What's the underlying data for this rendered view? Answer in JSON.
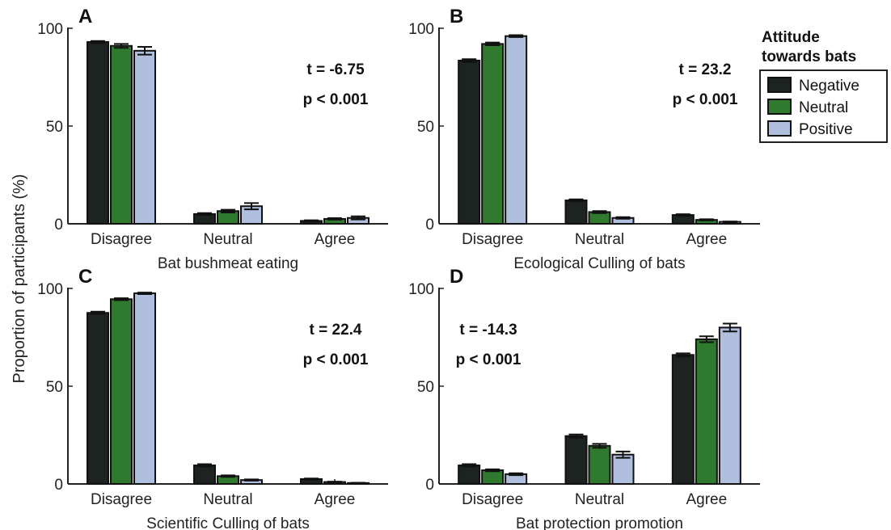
{
  "y_axis_label": "Proportion of participants (%)",
  "legend": {
    "title_line1": "Attitude",
    "title_line2": "towards bats",
    "items": [
      {
        "label": "Negative",
        "color": "#1c2321"
      },
      {
        "label": "Neutral",
        "color": "#2f7a2f"
      },
      {
        "label": "Positive",
        "color": "#b1bfdf"
      }
    ]
  },
  "chart_data": [
    {
      "type": "bar",
      "panel": "A",
      "xlabel": "Bat bushmeat eating",
      "categories": [
        "Disagree",
        "Neutral",
        "Agree"
      ],
      "yticks": [
        "0",
        "50",
        "100"
      ],
      "ylim": [
        0,
        100
      ],
      "stat_t": "t = -6.75",
      "stat_p": "p < 0.001",
      "series": [
        {
          "name": "Negative",
          "values": [
            93.0,
            5.0,
            1.5
          ],
          "errors": [
            0.5,
            0.5,
            0.3
          ]
        },
        {
          "name": "Neutral",
          "values": [
            91.0,
            6.5,
            2.5
          ],
          "errors": [
            1.0,
            0.7,
            0.4
          ]
        },
        {
          "name": "Positive",
          "values": [
            88.5,
            9.0,
            3.0
          ],
          "errors": [
            2.0,
            1.6,
            0.8
          ]
        }
      ]
    },
    {
      "type": "bar",
      "panel": "B",
      "xlabel": "Ecological Culling of bats",
      "categories": [
        "Disagree",
        "Neutral",
        "Agree"
      ],
      "yticks": [
        "0",
        "50",
        "100"
      ],
      "ylim": [
        0,
        100
      ],
      "stat_t": "t = 23.2",
      "stat_p": "p < 0.001",
      "series": [
        {
          "name": "Negative",
          "values": [
            83.5,
            12.0,
            4.5
          ],
          "errors": [
            0.7,
            0.5,
            0.4
          ]
        },
        {
          "name": "Neutral",
          "values": [
            92.0,
            6.0,
            2.0
          ],
          "errors": [
            0.7,
            0.5,
            0.3
          ]
        },
        {
          "name": "Positive",
          "values": [
            96.0,
            3.0,
            1.0
          ],
          "errors": [
            0.5,
            0.4,
            0.2
          ]
        }
      ]
    },
    {
      "type": "bar",
      "panel": "C",
      "xlabel": "Scientific Culling of bats",
      "categories": [
        "Disagree",
        "Neutral",
        "Agree"
      ],
      "yticks": [
        "0",
        "50",
        "100"
      ],
      "ylim": [
        0,
        100
      ],
      "stat_t": "t = 22.4",
      "stat_p": "p < 0.001",
      "series": [
        {
          "name": "Negative",
          "values": [
            87.5,
            9.5,
            2.5
          ],
          "errors": [
            0.6,
            0.6,
            0.3
          ]
        },
        {
          "name": "Neutral",
          "values": [
            94.5,
            4.0,
            1.0
          ],
          "errors": [
            0.5,
            0.4,
            0.2
          ]
        },
        {
          "name": "Positive",
          "values": [
            97.5,
            2.0,
            0.5
          ],
          "errors": [
            0.4,
            0.3,
            0.1
          ]
        }
      ]
    },
    {
      "type": "bar",
      "panel": "D",
      "xlabel": "Bat protection promotion",
      "categories": [
        "Disagree",
        "Neutral",
        "Agree"
      ],
      "yticks": [
        "0",
        "50",
        "100"
      ],
      "ylim": [
        0,
        100
      ],
      "stat_t": "t = -14.3",
      "stat_p": "p < 0.001",
      "series": [
        {
          "name": "Negative",
          "values": [
            9.5,
            24.5,
            66.0
          ],
          "errors": [
            0.6,
            0.8,
            0.8
          ]
        },
        {
          "name": "Neutral",
          "values": [
            7.0,
            19.5,
            74.0
          ],
          "errors": [
            0.5,
            1.0,
            1.5
          ]
        },
        {
          "name": "Positive",
          "values": [
            5.0,
            15.0,
            80.0
          ],
          "errors": [
            0.5,
            1.6,
            2.0
          ]
        }
      ]
    }
  ]
}
